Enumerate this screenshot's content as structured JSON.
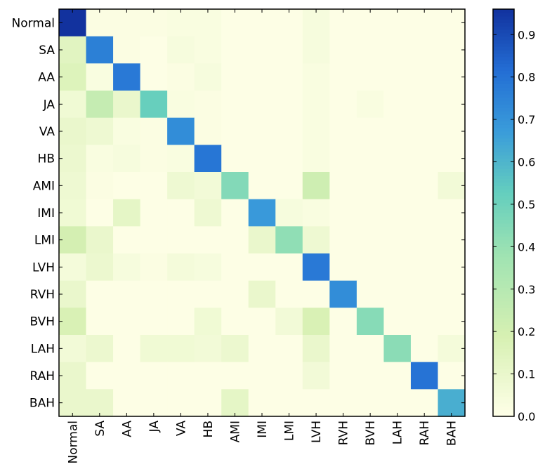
{
  "chart_data": {
    "type": "heatmap",
    "rows": [
      "Normal",
      "SA",
      "AA",
      "JA",
      "VA",
      "HB",
      "AMI",
      "IMI",
      "LMI",
      "LVH",
      "RVH",
      "BVH",
      "LAH",
      "RAH",
      "BAH"
    ],
    "cols": [
      "Normal",
      "SA",
      "AA",
      "JA",
      "VA",
      "HB",
      "AMI",
      "IMI",
      "LMI",
      "LVH",
      "RVH",
      "BVH",
      "LAH",
      "RAH",
      "BAH"
    ],
    "values": [
      [
        0.96,
        0.02,
        0.02,
        0.02,
        0.03,
        0.03,
        0.01,
        0.01,
        0.01,
        0.04,
        0.01,
        0.01,
        0.01,
        0.01,
        0.01
      ],
      [
        0.14,
        0.76,
        0.02,
        0.01,
        0.04,
        0.03,
        0.01,
        0.01,
        0.01,
        0.04,
        0.01,
        0.01,
        0.01,
        0.01,
        0.01
      ],
      [
        0.16,
        0.03,
        0.78,
        0.01,
        0.02,
        0.04,
        0.01,
        0.01,
        0.01,
        0.03,
        0.01,
        0.01,
        0.01,
        0.01,
        0.01
      ],
      [
        0.07,
        0.25,
        0.1,
        0.52,
        0.03,
        0.02,
        0.01,
        0.01,
        0.01,
        0.03,
        0.01,
        0.03,
        0.01,
        0.01,
        0.01
      ],
      [
        0.1,
        0.08,
        0.03,
        0.02,
        0.72,
        0.02,
        0.01,
        0.01,
        0.01,
        0.03,
        0.01,
        0.01,
        0.01,
        0.01,
        0.01
      ],
      [
        0.09,
        0.03,
        0.04,
        0.02,
        0.03,
        0.79,
        0.01,
        0.01,
        0.01,
        0.03,
        0.01,
        0.01,
        0.01,
        0.01,
        0.01
      ],
      [
        0.08,
        0.02,
        0.01,
        0.01,
        0.08,
        0.06,
        0.45,
        0.01,
        0.01,
        0.22,
        0.01,
        0.01,
        0.01,
        0.01,
        0.06
      ],
      [
        0.07,
        0.01,
        0.12,
        0.01,
        0.01,
        0.08,
        0.01,
        0.68,
        0.04,
        0.03,
        0.01,
        0.01,
        0.01,
        0.01,
        0.01
      ],
      [
        0.2,
        0.1,
        0.01,
        0.01,
        0.01,
        0.01,
        0.01,
        0.1,
        0.42,
        0.08,
        0.01,
        0.01,
        0.01,
        0.01,
        0.01
      ],
      [
        0.05,
        0.09,
        0.04,
        0.02,
        0.05,
        0.04,
        0.01,
        0.01,
        0.01,
        0.78,
        0.01,
        0.01,
        0.01,
        0.01,
        0.01
      ],
      [
        0.1,
        0.01,
        0.01,
        0.01,
        0.01,
        0.01,
        0.01,
        0.1,
        0.01,
        0.01,
        0.72,
        0.01,
        0.01,
        0.01,
        0.01
      ],
      [
        0.18,
        0.01,
        0.01,
        0.01,
        0.01,
        0.07,
        0.01,
        0.01,
        0.06,
        0.18,
        0.01,
        0.44,
        0.01,
        0.01,
        0.01
      ],
      [
        0.06,
        0.09,
        0.01,
        0.07,
        0.07,
        0.06,
        0.09,
        0.01,
        0.01,
        0.1,
        0.01,
        0.01,
        0.43,
        0.01,
        0.05
      ],
      [
        0.1,
        0.01,
        0.01,
        0.01,
        0.01,
        0.01,
        0.01,
        0.01,
        0.01,
        0.06,
        0.01,
        0.01,
        0.01,
        0.8,
        0.01
      ],
      [
        0.1,
        0.1,
        0.01,
        0.01,
        0.01,
        0.01,
        0.12,
        0.01,
        0.01,
        0.01,
        0.01,
        0.01,
        0.01,
        0.01,
        0.62
      ]
    ],
    "colorbar": {
      "range": [
        0.0,
        0.96
      ],
      "ticks": [
        0.0,
        0.1,
        0.2,
        0.3,
        0.4,
        0.5,
        0.6,
        0.7,
        0.8,
        0.9
      ],
      "tick_labels": [
        "0.0",
        "0.1",
        "0.2",
        "0.3",
        "0.4",
        "0.5",
        "0.6",
        "0.7",
        "0.8",
        "0.9"
      ],
      "colormap": "YlGnBu-light"
    },
    "title": "",
    "xlabel": "",
    "ylabel": "",
    "grid": false
  }
}
